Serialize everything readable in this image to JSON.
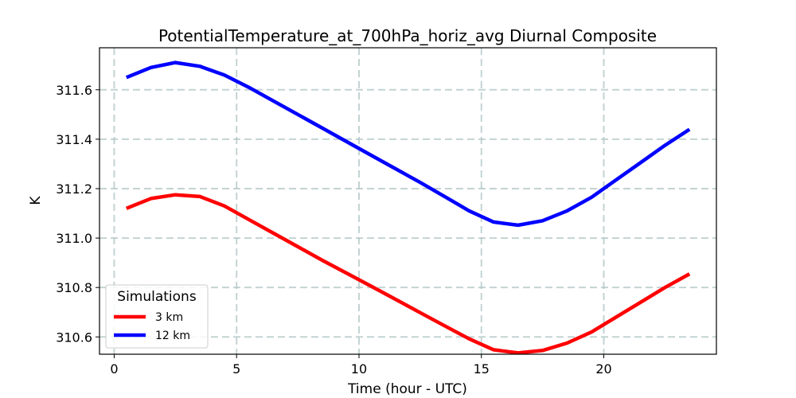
{
  "chart_data": {
    "type": "line",
    "title": "PotentialTemperature_at_700hPa_horiz_avg Diurnal Composite",
    "xlabel": "Time (hour - UTC)",
    "ylabel": "K",
    "xlim": [
      -0.6,
      24.6
    ],
    "ylim": [
      310.53,
      311.77
    ],
    "xticks": [
      0,
      5,
      10,
      15,
      20
    ],
    "yticks": [
      310.6,
      310.8,
      311.0,
      311.2,
      311.4,
      311.6
    ],
    "ytick_labels": [
      "310.6",
      "310.8",
      "311.0",
      "311.2",
      "311.4",
      "311.6"
    ],
    "grid": true,
    "legend": {
      "title": "Simulations",
      "position": "lower-left"
    },
    "x": [
      0.5,
      1.5,
      2.5,
      3.5,
      4.5,
      5.5,
      6.5,
      7.5,
      8.5,
      9.5,
      10.5,
      11.5,
      12.5,
      13.5,
      14.5,
      15.5,
      16.5,
      17.5,
      18.5,
      19.5,
      20.5,
      21.5,
      22.5,
      23.5
    ],
    "series": [
      {
        "name": "3 km",
        "color": "#ff0000",
        "values": [
          311.12,
          311.16,
          311.175,
          311.168,
          311.13,
          311.075,
          311.02,
          310.965,
          310.91,
          310.858,
          310.805,
          310.752,
          310.698,
          310.645,
          310.592,
          310.548,
          310.535,
          310.545,
          310.575,
          310.62,
          310.68,
          310.74,
          310.8,
          310.855
        ]
      },
      {
        "name": "12 km",
        "color": "#0000ff",
        "values": [
          311.65,
          311.69,
          311.71,
          311.695,
          311.66,
          311.61,
          311.555,
          311.5,
          311.445,
          311.39,
          311.335,
          311.28,
          311.225,
          311.168,
          311.11,
          311.065,
          311.052,
          311.07,
          311.11,
          311.165,
          311.235,
          311.305,
          311.375,
          311.44
        ]
      }
    ]
  }
}
